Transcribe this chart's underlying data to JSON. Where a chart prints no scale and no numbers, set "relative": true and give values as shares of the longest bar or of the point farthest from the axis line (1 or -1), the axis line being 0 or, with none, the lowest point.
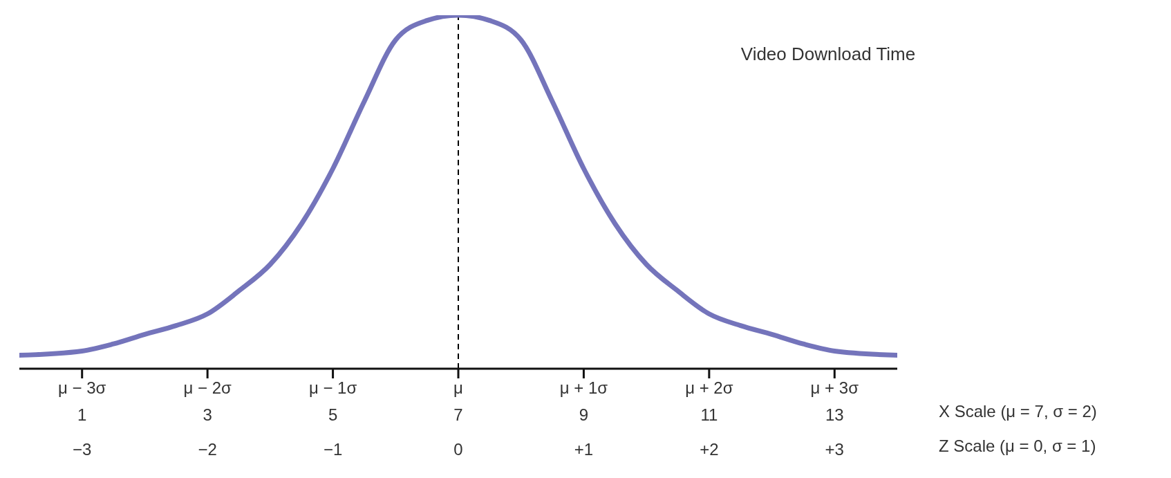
{
  "chart_data": {
    "type": "line",
    "title": "Video Download Time",
    "relative": true,
    "x": [
      0,
      1,
      1.5,
      2,
      2.5,
      3,
      3.5,
      4,
      4.5,
      5,
      5.5,
      6,
      6.5,
      7,
      7.5,
      8,
      8.5,
      9,
      9.5,
      10,
      10.5,
      11,
      11.5,
      12,
      12.5,
      13,
      14
    ],
    "series": [
      {
        "color": "#7474bb",
        "values": [
          0.038,
          0.05,
          0.07,
          0.097,
          0.122,
          0.155,
          0.22,
          0.295,
          0.41,
          0.566,
          0.756,
          0.93,
          0.985,
          1,
          0.985,
          0.93,
          0.756,
          0.566,
          0.41,
          0.295,
          0.22,
          0.155,
          0.122,
          0.097,
          0.07,
          0.05,
          0.038
        ]
      }
    ],
    "xlim": [
      0,
      14
    ],
    "xticks": [
      1,
      3,
      5,
      7,
      9,
      11,
      13
    ],
    "xlabel": "X Scale (μ = 7, σ = 2)",
    "x2lim": [
      -3.5,
      3.5
    ],
    "x2ticks": [
      {
        "value": -3,
        "label": "−3"
      },
      {
        "value": -2,
        "label": "−2"
      },
      {
        "value": -1,
        "label": "−1"
      },
      0,
      {
        "value": 1,
        "label": "+1"
      },
      {
        "value": 2,
        "label": "+2"
      },
      {
        "value": 3,
        "label": "+3"
      }
    ],
    "x2label": "Z Scale (μ = 0, σ = 1)",
    "annotations": [
      "μ − 3σ",
      "μ − 2σ",
      "μ − 1σ",
      "μ",
      "μ + 1σ",
      "μ + 2σ",
      "μ + 3σ"
    ],
    "ref_lines": [
      {
        "axis": "x",
        "value": 7,
        "color": "#000000",
        "line_style": "dashed"
      }
    ],
    "marker": "none",
    "line_style": "solid",
    "grid": false,
    "legend": false
  }
}
